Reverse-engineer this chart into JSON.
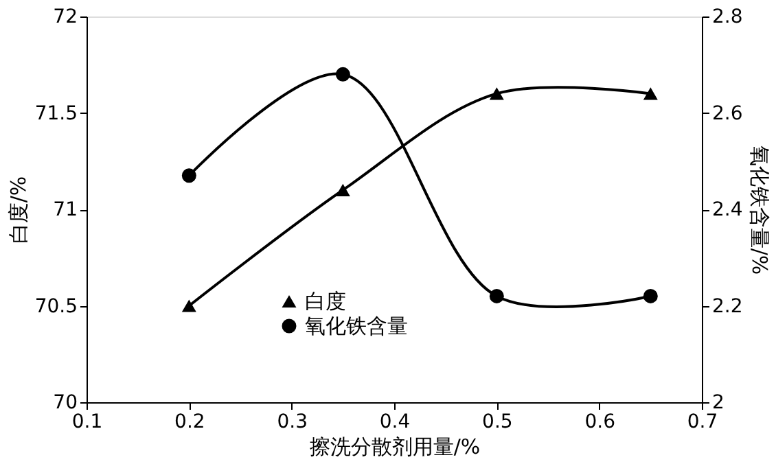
{
  "chart_data": {
    "type": "line",
    "xlabel": "擦洗分散剂用量/%",
    "ylabel": "白度/%",
    "y2label": "氧化铁含量/%",
    "x": [
      0.2,
      0.35,
      0.5,
      0.65
    ],
    "series": [
      {
        "name": "白度",
        "color": "#000000",
        "values": [
          70.5,
          71.1,
          71.6,
          71.6
        ],
        "marker": "triangle"
      },
      {
        "name": "氧化铁含量",
        "color": "#000000",
        "values": [
          2.47,
          2.68,
          2.22,
          2.22
        ],
        "axis": "y2",
        "marker": "circle"
      }
    ],
    "xlim": [
      0.1,
      0.7
    ],
    "xticks": [
      0.1,
      0.2,
      0.3,
      0.4,
      0.5,
      0.6,
      0.7
    ],
    "ylim": [
      70,
      72
    ],
    "yticks": [
      70,
      70.5,
      71,
      71.5,
      72
    ],
    "y2lim": [
      2,
      2.8
    ],
    "y2ticks": [
      2,
      2.2,
      2.4,
      2.6,
      2.8
    ],
    "grid": false,
    "legend": "bottom",
    "line_style": "solid"
  }
}
